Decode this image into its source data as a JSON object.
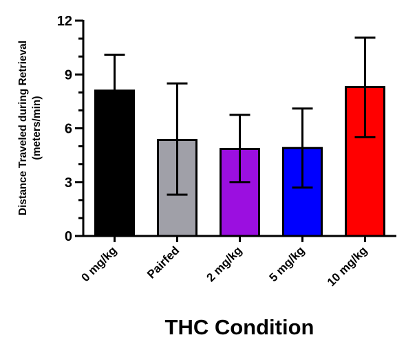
{
  "chart_data": {
    "type": "bar",
    "xlabel": "THC Condition",
    "ylabel_lines": [
      "Distance Traveled during Retrieval",
      "(meters/min)"
    ],
    "categories": [
      "0 mg/kg",
      "Pairfed",
      "2 mg/kg",
      "5 mg/kg",
      "10 mg/kg"
    ],
    "values": [
      8.1,
      5.35,
      4.85,
      4.9,
      8.3
    ],
    "error_upper": [
      10.1,
      8.5,
      6.75,
      7.1,
      11.05
    ],
    "error_lower": [
      null,
      2.3,
      3.0,
      2.7,
      5.5
    ],
    "colors": [
      "#000000",
      "#a0a0a8",
      "#9b0fe0",
      "#0000ff",
      "#ff0000"
    ],
    "ylim": [
      0,
      12
    ],
    "yticks": [
      0,
      3,
      6,
      9,
      12
    ],
    "minor_tick_step": 1,
    "grid": false,
    "legend": "none"
  }
}
